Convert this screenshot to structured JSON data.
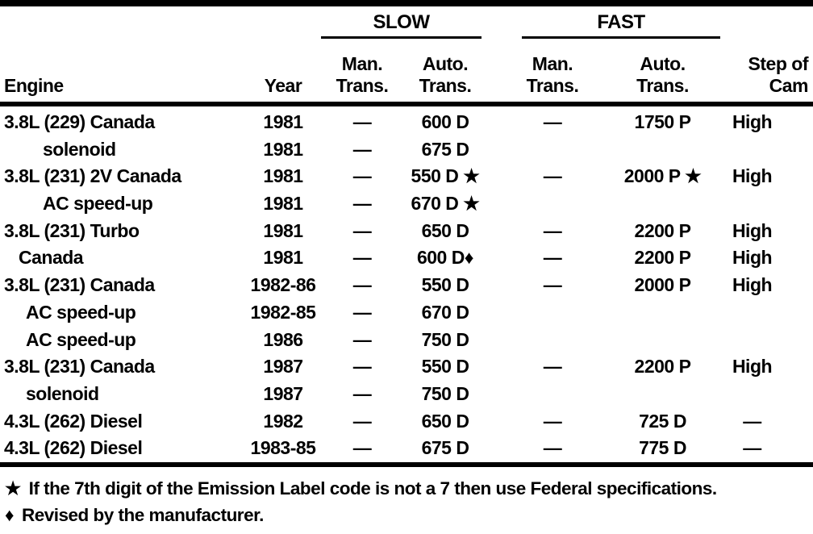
{
  "page": {
    "background_color": "#ffffff",
    "text_color": "#000000"
  },
  "table": {
    "headers": {
      "engine": "Engine",
      "year": "Year",
      "slow_group": "SLOW",
      "fast_group": "FAST",
      "slow_man": "Man.\nTrans.",
      "slow_auto": "Auto.\nTrans.",
      "fast_man": "Man.\nTrans.",
      "fast_auto": "Auto.\nTrans.",
      "step": "Step of\nCam"
    },
    "rows": [
      {
        "engine": "3.8L (229) Canada",
        "indent": 0,
        "year": "1981",
        "slow_man": "—",
        "slow_auto": "600 D",
        "fast_man": "—",
        "fast_auto": "1750 P",
        "step": "High"
      },
      {
        "engine": "solenoid",
        "indent": 3,
        "year": "1981",
        "slow_man": "—",
        "slow_auto": "675 D",
        "fast_man": "",
        "fast_auto": "",
        "step": ""
      },
      {
        "engine": "3.8L (231) 2V Canada",
        "indent": 0,
        "year": "1981",
        "slow_man": "—",
        "slow_auto": "550 D ★",
        "fast_man": "—",
        "fast_auto": "2000 P ★",
        "step": "High"
      },
      {
        "engine": "AC speed-up",
        "indent": 3,
        "year": "1981",
        "slow_man": "—",
        "slow_auto": "670 D ★",
        "fast_man": "",
        "fast_auto": "",
        "step": ""
      },
      {
        "engine": "3.8L (231) Turbo",
        "indent": 0,
        "year": "1981",
        "slow_man": "—",
        "slow_auto": "650 D",
        "fast_man": "—",
        "fast_auto": "2200 P",
        "step": "High"
      },
      {
        "engine": "Canada",
        "indent": 1,
        "year": "1981",
        "slow_man": "—",
        "slow_auto": "600 D♦",
        "fast_man": "—",
        "fast_auto": "2200 P",
        "step": "High"
      },
      {
        "engine": "3.8L (231) Canada",
        "indent": 0,
        "year": "1982-86",
        "slow_man": "—",
        "slow_auto": "550 D",
        "fast_man": "—",
        "fast_auto": "2000 P",
        "step": "High"
      },
      {
        "engine": "AC speed-up",
        "indent": 2,
        "year": "1982-85",
        "slow_man": "—",
        "slow_auto": "670 D",
        "fast_man": "",
        "fast_auto": "",
        "step": ""
      },
      {
        "engine": "AC speed-up",
        "indent": 2,
        "year": "1986",
        "slow_man": "—",
        "slow_auto": "750 D",
        "fast_man": "",
        "fast_auto": "",
        "step": ""
      },
      {
        "engine": "3.8L (231) Canada",
        "indent": 0,
        "year": "1987",
        "slow_man": "—",
        "slow_auto": "550 D",
        "fast_man": "—",
        "fast_auto": "2200 P",
        "step": "High"
      },
      {
        "engine": "solenoid",
        "indent": 2,
        "year": "1987",
        "slow_man": "—",
        "slow_auto": "750 D",
        "fast_man": "",
        "fast_auto": "",
        "step": ""
      },
      {
        "engine": "4.3L (262) Diesel",
        "indent": 0,
        "year": "1982",
        "slow_man": "—",
        "slow_auto": "650 D",
        "fast_man": "—",
        "fast_auto": "725 D",
        "step": "—"
      },
      {
        "engine": "4.3L (262) Diesel",
        "indent": 0,
        "year": "1983-85",
        "slow_man": "—",
        "slow_auto": "675 D",
        "fast_man": "—",
        "fast_auto": "775 D",
        "step": "—"
      }
    ],
    "footnotes": [
      {
        "symbol": "★",
        "text": "If the 7th digit of the Emission Label code is not a 7 then use Federal specifications."
      },
      {
        "symbol": "♦",
        "text": "Revised by the manufacturer."
      }
    ]
  }
}
